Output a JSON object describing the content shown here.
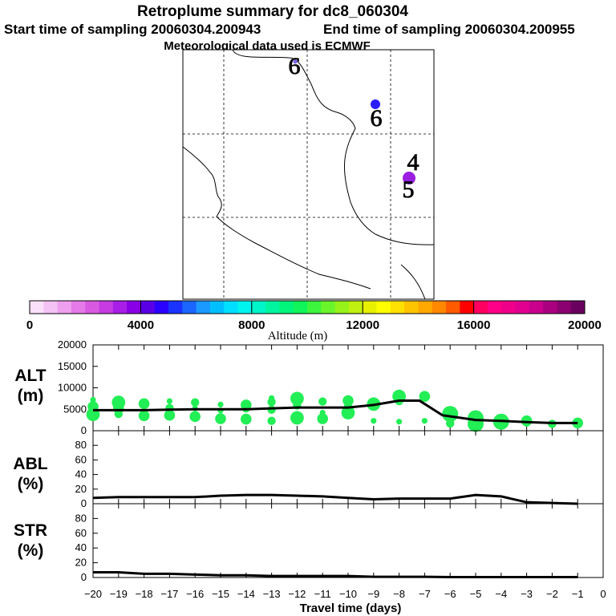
{
  "title": "Retroplume summary for dc8_060304",
  "start_label": "Start time of sampling 20060304.200943",
  "end_label": "End time of sampling 20060304.200955",
  "met_label": "Meteorological data used is ECMWF",
  "map": {
    "markers": [
      {
        "label": "6",
        "color": "#7b66ff"
      },
      {
        "label": "6",
        "color": "#2a1cff"
      },
      {
        "label": "4",
        "color": "#000000"
      },
      {
        "label": "5",
        "color": "#9a1fe0"
      }
    ]
  },
  "colorbar": {
    "label": "Altitude (m)",
    "ticks": [
      "0",
      "4000",
      "8000",
      "12000",
      "16000",
      "20000"
    ],
    "range": [
      0,
      20000
    ],
    "colors": [
      "#fbe0fb",
      "#f5c2f5",
      "#ee9fee",
      "#e57ae8",
      "#d85ae0",
      "#c63ce0",
      "#a81ee6",
      "#8a00e6",
      "#5a00e6",
      "#2a00ff",
      "#1a33ff",
      "#1a66ff",
      "#1a99ff",
      "#00bfff",
      "#00dfff",
      "#00f5f0",
      "#00f5c8",
      "#00f5a0",
      "#00f57a",
      "#10f55a",
      "#3cf53c",
      "#6af52a",
      "#96f21a",
      "#c0f010",
      "#e6f000",
      "#ffff00",
      "#ffe000",
      "#ffc400",
      "#ffa800",
      "#ff8800",
      "#ff5a00",
      "#ff0000",
      "#ff0060",
      "#ff0088",
      "#f0008a",
      "#e00090",
      "#c8008c",
      "#aa0080",
      "#8a0070",
      "#6a0060"
    ]
  },
  "chart_data": [
    {
      "type": "scatter",
      "ylabel": "ALT",
      "yunit": "(m)",
      "ylim": [
        0,
        20000
      ],
      "yticks": [
        "0",
        "5000",
        "10000",
        "15000",
        "20000"
      ],
      "xlim": [
        -20,
        0
      ],
      "line": {
        "x": [
          -20,
          -19,
          -18,
          -17,
          -16,
          -15,
          -14,
          -13,
          -12,
          -11,
          -10,
          -9,
          -8,
          -7.2,
          -6.3,
          -5,
          -4,
          -3,
          -2,
          -1
        ],
        "y": [
          4800,
          4800,
          4800,
          4900,
          5000,
          5000,
          5000,
          5200,
          5400,
          5400,
          5400,
          6000,
          7000,
          7000,
          3600,
          2500,
          2300,
          2000,
          1800,
          1800
        ]
      },
      "points": [
        {
          "x": -20,
          "y": 7200,
          "s": 1
        },
        {
          "x": -20,
          "y": 5600,
          "s": 3
        },
        {
          "x": -20,
          "y": 3800,
          "s": 4
        },
        {
          "x": -19,
          "y": 6600,
          "s": 4
        },
        {
          "x": -19,
          "y": 5200,
          "s": 3
        },
        {
          "x": -19,
          "y": 3900,
          "s": 2
        },
        {
          "x": -18,
          "y": 6300,
          "s": 3
        },
        {
          "x": -18,
          "y": 3500,
          "s": 3
        },
        {
          "x": -17,
          "y": 6900,
          "s": 1
        },
        {
          "x": -17,
          "y": 5300,
          "s": 2
        },
        {
          "x": -17,
          "y": 3600,
          "s": 3
        },
        {
          "x": -16,
          "y": 6600,
          "s": 2
        },
        {
          "x": -16,
          "y": 5200,
          "s": 1
        },
        {
          "x": -16,
          "y": 3300,
          "s": 3
        },
        {
          "x": -15,
          "y": 6100,
          "s": 1
        },
        {
          "x": -15,
          "y": 4700,
          "s": 1
        },
        {
          "x": -15,
          "y": 2800,
          "s": 3
        },
        {
          "x": -14,
          "y": 6000,
          "s": 3
        },
        {
          "x": -14,
          "y": 5200,
          "s": 2
        },
        {
          "x": -14,
          "y": 2700,
          "s": 3
        },
        {
          "x": -13,
          "y": 7600,
          "s": 1
        },
        {
          "x": -13,
          "y": 6700,
          "s": 2
        },
        {
          "x": -13,
          "y": 4900,
          "s": 2
        },
        {
          "x": -13,
          "y": 2300,
          "s": 2
        },
        {
          "x": -12,
          "y": 7500,
          "s": 4
        },
        {
          "x": -12,
          "y": 5900,
          "s": 2
        },
        {
          "x": -12,
          "y": 3000,
          "s": 4
        },
        {
          "x": -11,
          "y": 6800,
          "s": 2
        },
        {
          "x": -11,
          "y": 4200,
          "s": 1
        },
        {
          "x": -11,
          "y": 2800,
          "s": 3
        },
        {
          "x": -10,
          "y": 7000,
          "s": 3
        },
        {
          "x": -10,
          "y": 5600,
          "s": 2
        },
        {
          "x": -10,
          "y": 4200,
          "s": 4
        },
        {
          "x": -9,
          "y": 6200,
          "s": 4
        },
        {
          "x": -9,
          "y": 2300,
          "s": 1
        },
        {
          "x": -8,
          "y": 8000,
          "s": 4
        },
        {
          "x": -8,
          "y": 6900,
          "s": 2
        },
        {
          "x": -8,
          "y": 2100,
          "s": 1
        },
        {
          "x": -7,
          "y": 8000,
          "s": 3
        },
        {
          "x": -7,
          "y": 2300,
          "s": 1
        },
        {
          "x": -6,
          "y": 3900,
          "s": 5
        },
        {
          "x": -6,
          "y": 1700,
          "s": 2
        },
        {
          "x": -5,
          "y": 2900,
          "s": 5
        },
        {
          "x": -5,
          "y": 1600,
          "s": 5
        },
        {
          "x": -4,
          "y": 2100,
          "s": 5
        },
        {
          "x": -3,
          "y": 2300,
          "s": 3
        },
        {
          "x": -3,
          "y": 1900,
          "s": 2
        },
        {
          "x": -2,
          "y": 1600,
          "s": 2
        },
        {
          "x": -1,
          "y": 1800,
          "s": 3
        }
      ],
      "point_color": "#22ee55"
    },
    {
      "type": "line",
      "ylabel": "ABL",
      "yunit": "(%)",
      "ylim": [
        0,
        100
      ],
      "yticks": [
        "0",
        "20",
        "40",
        "60",
        "80"
      ],
      "xlim": [
        -20,
        0
      ],
      "x": [
        -20,
        -19,
        -18,
        -17,
        -16,
        -15,
        -14,
        -13,
        -12,
        -11,
        -10,
        -9,
        -8,
        -7,
        -6,
        -5,
        -4,
        -3,
        -2,
        -1
      ],
      "y": [
        8,
        9,
        9,
        9,
        9,
        11,
        12,
        12,
        11,
        10,
        8,
        6,
        7,
        7,
        7,
        12,
        10,
        2,
        1,
        0
      ]
    },
    {
      "type": "line",
      "ylabel": "STR",
      "yunit": "(%)",
      "ylim": [
        0,
        100
      ],
      "yticks": [
        "0",
        "20",
        "40",
        "60",
        "80"
      ],
      "xlim": [
        -20,
        0
      ],
      "x": [
        -20,
        -19,
        -18,
        -17,
        -16,
        -15,
        -14,
        -13,
        -12,
        -11,
        -10,
        -9,
        -8,
        -7,
        -6,
        -5,
        -4,
        -3,
        -2,
        -1
      ],
      "y": [
        7,
        7,
        5,
        5,
        4,
        3,
        3,
        2,
        2,
        2,
        2,
        1,
        1,
        1,
        0.5,
        0.5,
        0.5,
        0.5,
        0.5,
        0.5
      ]
    }
  ],
  "xaxis": {
    "label": "Travel time (days)",
    "ticks": [
      "−20",
      "−19",
      "−18",
      "−17",
      "−16",
      "−15",
      "−14",
      "−13",
      "−12",
      "−11",
      "−10",
      "−9",
      "−8",
      "−7",
      "−6",
      "−5",
      "−4",
      "−3",
      "−2",
      "−1",
      "0"
    ]
  }
}
